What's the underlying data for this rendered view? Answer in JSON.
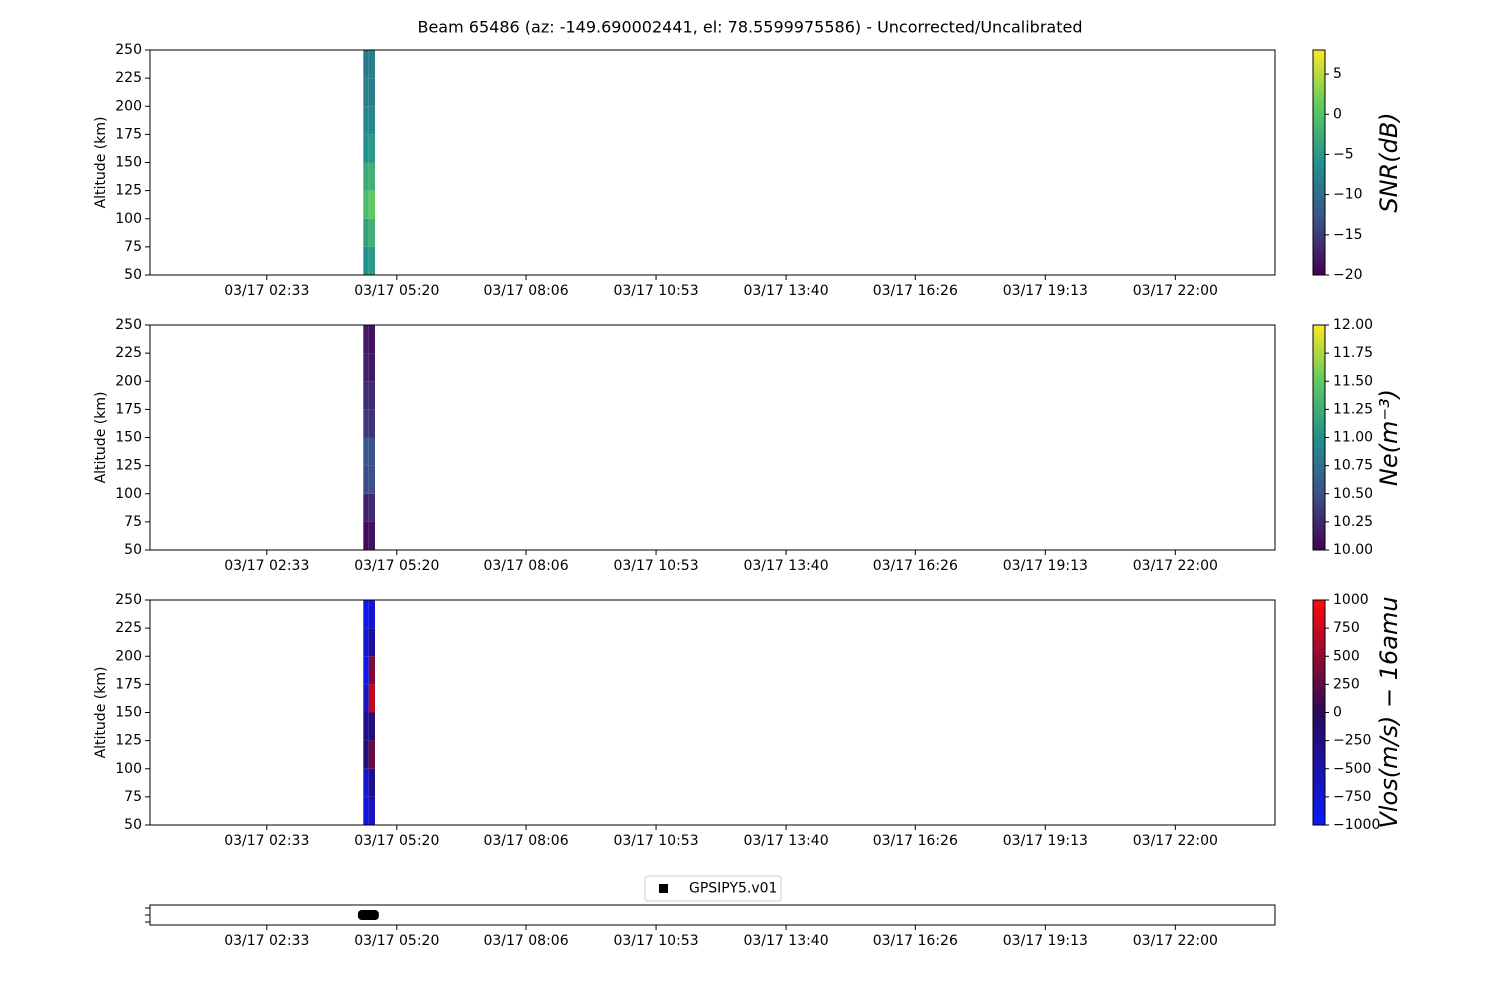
{
  "title": "Beam 65486 (az: -149.690002441, el: 78.5599975586) - Uncorrected/Uncalibrated",
  "chart_data": [
    {
      "type": "heatmap",
      "ylabel": "Altitude (km)",
      "xlim": [
        3,
        1448
      ],
      "xticks": [
        {
          "value": 153,
          "label": "03/17 02:33"
        },
        {
          "value": 320,
          "label": "03/17 05:20"
        },
        {
          "value": 486,
          "label": "03/17 08:06"
        },
        {
          "value": 653,
          "label": "03/17 10:53"
        },
        {
          "value": 820,
          "label": "03/17 13:40"
        },
        {
          "value": 986,
          "label": "03/17 16:26"
        },
        {
          "value": 1153,
          "label": "03/17 19:13"
        },
        {
          "value": 1320,
          "label": "03/17 22:00"
        }
      ],
      "ylim": [
        50,
        250
      ],
      "yticks": [
        50,
        75,
        100,
        125,
        150,
        175,
        200,
        225,
        250
      ],
      "x_edges": [
        277,
        284,
        292
      ],
      "y_edges": [
        50,
        75,
        100,
        125,
        150,
        175,
        200,
        225,
        250
      ],
      "values": [
        [
          -6,
          -4,
          -1,
          -3,
          -6,
          -7,
          -8,
          -9
        ],
        [
          -5,
          -2,
          1,
          -2,
          -5,
          -7,
          -8,
          -8
        ]
      ],
      "colorbar": {
        "label": "SNR(dB)",
        "lim": [
          -20,
          8
        ],
        "ticks": [
          {
            "value": -20,
            "label": "−20"
          },
          {
            "value": -15,
            "label": "−15"
          },
          {
            "value": -10,
            "label": "−10"
          },
          {
            "value": -5,
            "label": "−5"
          },
          0,
          5
        ],
        "colormap": [
          "#440154",
          "#3b528b",
          "#21918c",
          "#5ec962",
          "#fde725"
        ]
      }
    },
    {
      "type": "heatmap",
      "ylabel": "Altitude (km)",
      "xlim": [
        3,
        1448
      ],
      "xticks": [
        {
          "value": 153,
          "label": "03/17 02:33"
        },
        {
          "value": 320,
          "label": "03/17 05:20"
        },
        {
          "value": 486,
          "label": "03/17 08:06"
        },
        {
          "value": 653,
          "label": "03/17 10:53"
        },
        {
          "value": 820,
          "label": "03/17 13:40"
        },
        {
          "value": 986,
          "label": "03/17 16:26"
        },
        {
          "value": 1153,
          "label": "03/17 19:13"
        },
        {
          "value": 1320,
          "label": "03/17 22:00"
        }
      ],
      "ylim": [
        50,
        250
      ],
      "yticks": [
        50,
        75,
        100,
        125,
        150,
        175,
        200,
        225,
        250
      ],
      "x_edges": [
        277,
        284,
        292
      ],
      "y_edges": [
        50,
        75,
        100,
        125,
        150,
        175,
        200,
        225,
        250
      ],
      "values": [
        [
          10.05,
          10.2,
          10.45,
          10.55,
          10.35,
          10.25,
          10.2,
          10.15
        ],
        [
          10.1,
          10.25,
          10.5,
          10.5,
          10.3,
          10.25,
          10.15,
          10.1
        ]
      ],
      "colorbar": {
        "label": "Ne(m⁻³)",
        "lim": [
          10,
          12
        ],
        "ticks": [
          {
            "value": 10,
            "label": "10.00"
          },
          10.25,
          {
            "value": 10.5,
            "label": "10.50"
          },
          10.75,
          {
            "value": 11,
            "label": "11.00"
          },
          11.25,
          {
            "value": 11.5,
            "label": "11.50"
          },
          11.75,
          {
            "value": 12,
            "label": "12.00"
          }
        ],
        "colormap": [
          "#440154",
          "#3b528b",
          "#21918c",
          "#5ec962",
          "#fde725"
        ]
      }
    },
    {
      "type": "heatmap",
      "ylabel": "Altitude (km)",
      "xlim": [
        3,
        1448
      ],
      "xticks": [
        {
          "value": 153,
          "label": "03/17 02:33"
        },
        {
          "value": 320,
          "label": "03/17 05:20"
        },
        {
          "value": 486,
          "label": "03/17 08:06"
        },
        {
          "value": 653,
          "label": "03/17 10:53"
        },
        {
          "value": 820,
          "label": "03/17 13:40"
        },
        {
          "value": 986,
          "label": "03/17 16:26"
        },
        {
          "value": 1153,
          "label": "03/17 19:13"
        },
        {
          "value": 1320,
          "label": "03/17 22:00"
        }
      ],
      "ylim": [
        50,
        250
      ],
      "yticks": [
        50,
        75,
        100,
        125,
        150,
        175,
        200,
        225,
        250
      ],
      "x_edges": [
        277,
        284,
        292
      ],
      "y_edges": [
        50,
        75,
        100,
        125,
        150,
        175,
        200,
        225,
        250
      ],
      "values": [
        [
          -800,
          -700,
          -200,
          -300,
          -600,
          -900,
          -700,
          -900
        ],
        [
          -600,
          -300,
          300,
          -200,
          700,
          400,
          -400,
          -700
        ]
      ],
      "colorbar": {
        "label": "Vlos(m/s) − 16amu",
        "lim": [
          -1000,
          1000
        ],
        "ticks": [
          {
            "value": -1000,
            "label": "−1000"
          },
          {
            "value": -750,
            "label": "−750"
          },
          {
            "value": -500,
            "label": "−500"
          },
          {
            "value": -250,
            "label": "−250"
          },
          0,
          250,
          500,
          750,
          1000
        ],
        "colormap": [
          "#0a1aff",
          "#2a0a5a",
          "#ff0a0a"
        ]
      }
    },
    {
      "type": "timeline",
      "xlim": [
        3,
        1448
      ],
      "xticks": [
        {
          "value": 153,
          "label": "03/17 02:33"
        },
        {
          "value": 320,
          "label": "03/17 05:20"
        },
        {
          "value": 486,
          "label": "03/17 08:06"
        },
        {
          "value": 653,
          "label": "03/17 10:53"
        },
        {
          "value": 820,
          "label": "03/17 13:40"
        },
        {
          "value": 986,
          "label": "03/17 16:26"
        },
        {
          "value": 1153,
          "label": "03/17 19:13"
        },
        {
          "value": 1320,
          "label": "03/17 22:00"
        }
      ],
      "series": [
        {
          "name": "GPSIPY5.v01",
          "color": "#000000",
          "start": 270,
          "end": 297
        }
      ]
    }
  ]
}
